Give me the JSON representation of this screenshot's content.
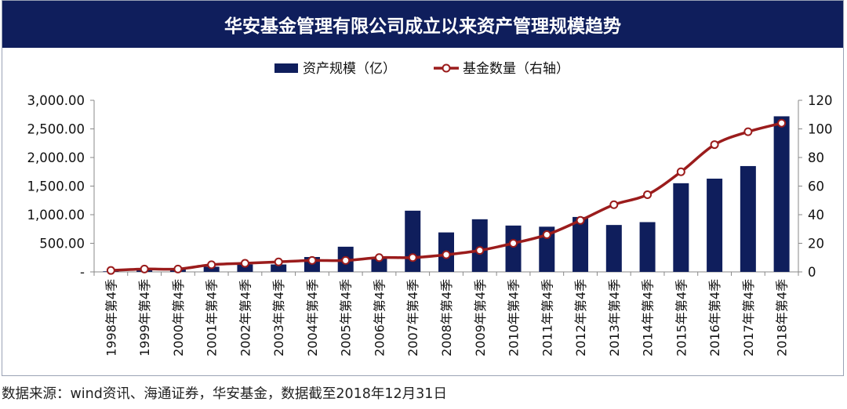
{
  "chart_data": {
    "type": "bar",
    "title": "华安基金管理有限公司成立以来资产管理规模趋势",
    "categories": [
      "1998年第4季",
      "1999年第4季",
      "2000年第4季",
      "2001年第4季",
      "2002年第4季",
      "2003年第4季",
      "2004年第4季",
      "2005年第4季",
      "2006年第4季",
      "2007年第4季",
      "2008年第4季",
      "2009年第4季",
      "2010年第4季",
      "2011年第4季",
      "2012年第4季",
      "2013年第4季",
      "2014年第4季",
      "2015年第4季",
      "2016年第4季",
      "2017年第4季",
      "2018年第4季"
    ],
    "series": [
      {
        "name": "资产规模（亿）",
        "type": "bar",
        "axis": "left",
        "color": "#0f1e5c",
        "values": [
          10,
          50,
          60,
          90,
          130,
          130,
          260,
          440,
          240,
          1070,
          690,
          920,
          810,
          790,
          960,
          820,
          870,
          1550,
          1630,
          1850,
          2720
        ]
      },
      {
        "name": "基金数量（右轴）",
        "type": "line",
        "axis": "right",
        "color": "#9b1c1c",
        "values": [
          1,
          2,
          2,
          5,
          6,
          7,
          8,
          8,
          10,
          10,
          12,
          15,
          20,
          26,
          36,
          47,
          54,
          70,
          89,
          98,
          104
        ]
      }
    ],
    "y_left": {
      "min": 0,
      "max": 3000,
      "ticks": [
        "-",
        "500.00",
        "1,000.00",
        "1,500.00",
        "2,000.00",
        "2,500.00",
        "3,000.00"
      ]
    },
    "y_right": {
      "min": 0,
      "max": 120,
      "ticks": [
        "0",
        "20",
        "40",
        "60",
        "80",
        "100",
        "120"
      ]
    },
    "legend_position": "top-center",
    "grid": false
  },
  "footnote": "数据来源：wind资讯、海通证券，华安基金，数据截至2018年12月31日"
}
